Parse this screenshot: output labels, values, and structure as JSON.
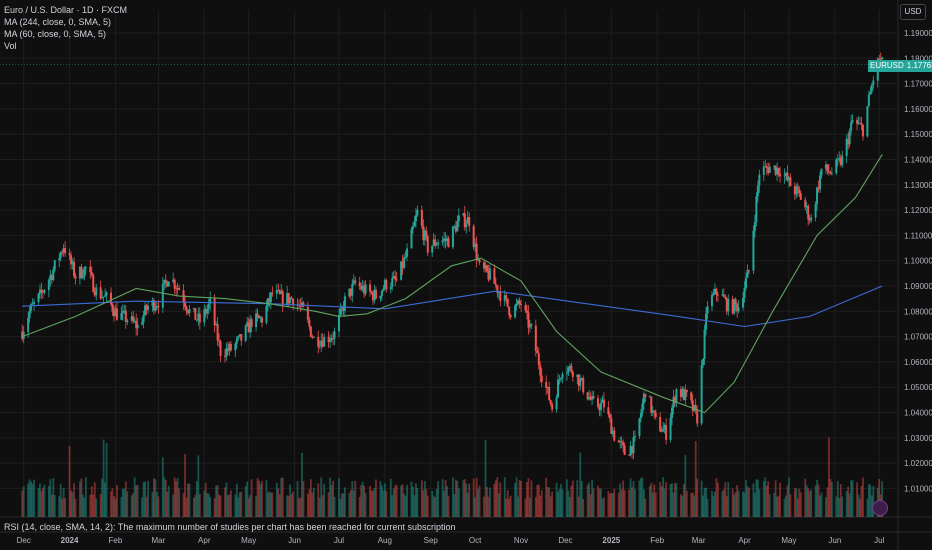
{
  "legend": {
    "symbol": "Euro / U.S. Dollar · 1D · FXCM",
    "ma1": "MA (244, close, 0, SMA, 5)",
    "ma2": "MA (60, close, 0, SMA, 5)",
    "vol": "Vol"
  },
  "rsi_message": "RSI (14, close, SMA, 14, 2): The maximum number of studies per chart has been reached for current subscription",
  "currency": "USD",
  "last_price": {
    "symbol": "EURUSD",
    "value": "1.17763"
  },
  "colors": {
    "up": "#26a69a",
    "down": "#ef5350",
    "ma_long": "#3d6bd6",
    "ma_short": "#5fa35f",
    "grid": "#1e1e1e"
  },
  "chart_data": {
    "type": "candlestick",
    "ylim": [
      1.005,
      1.185
    ],
    "y_ticks": [
      "1.19000",
      "1.18000",
      "1.17000",
      "1.16000",
      "1.15000",
      "1.14000",
      "1.13000",
      "1.12000",
      "1.11000",
      "1.10000",
      "1.09000",
      "1.08000",
      "1.07000",
      "1.06000",
      "1.05000",
      "1.04000",
      "1.03000",
      "1.02000",
      "1.01000"
    ],
    "x_ticks": [
      "Dec",
      "2024",
      "Feb",
      "Mar",
      "Apr",
      "May",
      "Jun",
      "Jul",
      "Aug",
      "Sep",
      "Oct",
      "Nov",
      "Dec",
      "2025",
      "Feb",
      "Mar",
      "Apr",
      "May",
      "Jun",
      "Jul"
    ],
    "close_path": [
      [
        "2023-11-30",
        1.072
      ],
      [
        "2023-12-05",
        1.08
      ],
      [
        "2023-12-12",
        1.086
      ],
      [
        "2023-12-20",
        1.095
      ],
      [
        "2023-12-28",
        1.106
      ],
      [
        "2024-01-05",
        1.094
      ],
      [
        "2024-01-12",
        1.097
      ],
      [
        "2024-01-19",
        1.088
      ],
      [
        "2024-01-26",
        1.085
      ],
      [
        "2024-02-02",
        1.079
      ],
      [
        "2024-02-09",
        1.077
      ],
      [
        "2024-02-16",
        1.074
      ],
      [
        "2024-02-23",
        1.082
      ],
      [
        "2024-03-01",
        1.084
      ],
      [
        "2024-03-08",
        1.094
      ],
      [
        "2024-03-15",
        1.089
      ],
      [
        "2024-03-22",
        1.08
      ],
      [
        "2024-03-29",
        1.076
      ],
      [
        "2024-04-05",
        1.083
      ],
      [
        "2024-04-12",
        1.064
      ],
      [
        "2024-04-19",
        1.065
      ],
      [
        "2024-04-26",
        1.069
      ],
      [
        "2024-05-03",
        1.076
      ],
      [
        "2024-05-10",
        1.077
      ],
      [
        "2024-05-17",
        1.087
      ],
      [
        "2024-05-24",
        1.085
      ],
      [
        "2024-05-31",
        1.085
      ],
      [
        "2024-06-07",
        1.08
      ],
      [
        "2024-06-14",
        1.069
      ],
      [
        "2024-06-21",
        1.069
      ],
      [
        "2024-06-28",
        1.071
      ],
      [
        "2024-07-05",
        1.084
      ],
      [
        "2024-07-12",
        1.091
      ],
      [
        "2024-07-19",
        1.088
      ],
      [
        "2024-07-26",
        1.086
      ],
      [
        "2024-08-02",
        1.091
      ],
      [
        "2024-08-09",
        1.092
      ],
      [
        "2024-08-16",
        1.103
      ],
      [
        "2024-08-23",
        1.119
      ],
      [
        "2024-08-30",
        1.105
      ],
      [
        "2024-09-06",
        1.108
      ],
      [
        "2024-09-13",
        1.108
      ],
      [
        "2024-09-20",
        1.116
      ],
      [
        "2024-09-27",
        1.116
      ],
      [
        "2024-10-04",
        1.097
      ],
      [
        "2024-10-11",
        1.094
      ],
      [
        "2024-10-18",
        1.087
      ],
      [
        "2024-10-25",
        1.08
      ],
      [
        "2024-11-01",
        1.083
      ],
      [
        "2024-11-08",
        1.072
      ],
      [
        "2024-11-15",
        1.055
      ],
      [
        "2024-11-22",
        1.042
      ],
      [
        "2024-11-29",
        1.058
      ],
      [
        "2024-12-06",
        1.057
      ],
      [
        "2024-12-13",
        1.05
      ],
      [
        "2024-12-20",
        1.043
      ],
      [
        "2024-12-27",
        1.043
      ],
      [
        "2025-01-03",
        1.031
      ],
      [
        "2025-01-10",
        1.024
      ],
      [
        "2025-01-17",
        1.028
      ],
      [
        "2025-01-24",
        1.049
      ],
      [
        "2025-01-31",
        1.036
      ],
      [
        "2025-02-07",
        1.032
      ],
      [
        "2025-02-14",
        1.049
      ],
      [
        "2025-02-21",
        1.046
      ],
      [
        "2025-02-28",
        1.038
      ],
      [
        "2025-03-07",
        1.083
      ],
      [
        "2025-03-14",
        1.088
      ],
      [
        "2025-03-21",
        1.082
      ],
      [
        "2025-03-28",
        1.082
      ],
      [
        "2025-04-04",
        1.096
      ],
      [
        "2025-04-11",
        1.135
      ],
      [
        "2025-04-18",
        1.137
      ],
      [
        "2025-04-25",
        1.136
      ],
      [
        "2025-05-02",
        1.13
      ],
      [
        "2025-05-09",
        1.125
      ],
      [
        "2025-05-16",
        1.116
      ],
      [
        "2025-05-23",
        1.136
      ],
      [
        "2025-05-30",
        1.135
      ],
      [
        "2025-06-06",
        1.14
      ],
      [
        "2025-06-13",
        1.155
      ],
      [
        "2025-06-20",
        1.152
      ],
      [
        "2025-06-27",
        1.172
      ],
      [
        "2025-07-01",
        1.18
      ],
      [
        "2025-07-03",
        1.1776
      ]
    ],
    "ma_244_path": [
      [
        "2023-11-30",
        1.082
      ],
      [
        "2024-02-15",
        1.084
      ],
      [
        "2024-05-15",
        1.083
      ],
      [
        "2024-08-01",
        1.081
      ],
      [
        "2024-10-15",
        1.088
      ],
      [
        "2024-12-15",
        1.083
      ],
      [
        "2025-02-15",
        1.078
      ],
      [
        "2025-04-01",
        1.074
      ],
      [
        "2025-05-15",
        1.078
      ],
      [
        "2025-07-03",
        1.09
      ]
    ],
    "ma_60_path": [
      [
        "2023-11-30",
        1.07
      ],
      [
        "2024-01-05",
        1.078
      ],
      [
        "2024-02-15",
        1.089
      ],
      [
        "2024-03-15",
        1.086
      ],
      [
        "2024-04-15",
        1.085
      ],
      [
        "2024-05-15",
        1.083
      ],
      [
        "2024-06-15",
        1.08
      ],
      [
        "2024-07-01",
        1.078
      ],
      [
        "2024-07-20",
        1.079
      ],
      [
        "2024-08-15",
        1.085
      ],
      [
        "2024-09-15",
        1.098
      ],
      [
        "2024-10-05",
        1.101
      ],
      [
        "2024-11-01",
        1.092
      ],
      [
        "2024-11-25",
        1.072
      ],
      [
        "2024-12-25",
        1.056
      ],
      [
        "2025-02-05",
        1.046
      ],
      [
        "2025-03-05",
        1.04
      ],
      [
        "2025-03-25",
        1.052
      ],
      [
        "2025-04-20",
        1.08
      ],
      [
        "2025-05-20",
        1.11
      ],
      [
        "2025-06-15",
        1.125
      ],
      [
        "2025-07-03",
        1.142
      ]
    ]
  }
}
